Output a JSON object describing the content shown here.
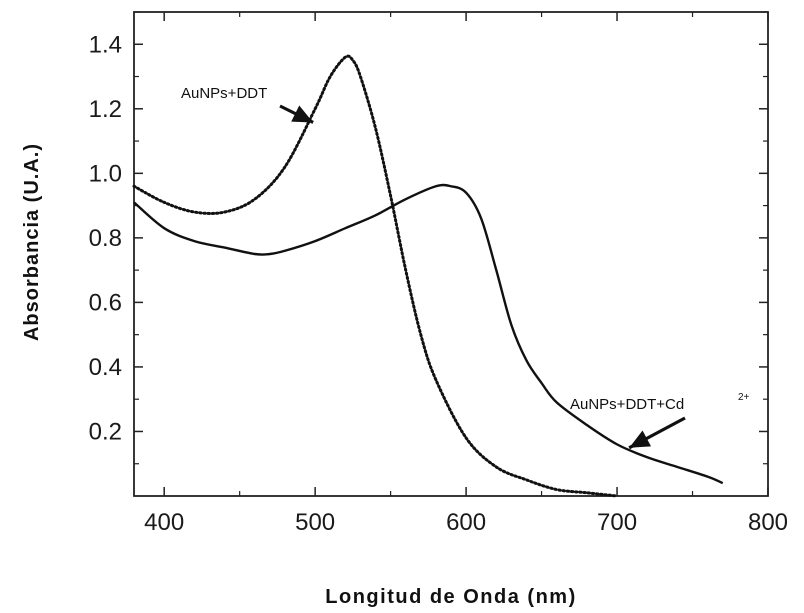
{
  "chart_data": {
    "type": "line",
    "title": "",
    "xlabel": "Longitud de Onda (nm)",
    "ylabel": "Absorbancia (U.A.)",
    "xlim": [
      380,
      800
    ],
    "ylim": [
      0,
      1.5
    ],
    "x_ticks": [
      "400",
      "500",
      "600",
      "700",
      "800"
    ],
    "y_ticks": [
      "0.2",
      "0.4",
      "0.6",
      "0.8",
      "1.0",
      "1.2",
      "1.4"
    ],
    "grid": false,
    "series": [
      {
        "name": "AuNPs+DDT",
        "style": "dotted",
        "x": [
          380,
          400,
          420,
          440,
          460,
          480,
          500,
          510,
          520,
          525,
          530,
          540,
          550,
          560,
          570,
          580,
          600,
          620,
          640,
          660,
          680,
          700
        ],
        "y": [
          0.96,
          0.91,
          0.88,
          0.88,
          0.92,
          1.02,
          1.2,
          1.3,
          1.36,
          1.35,
          1.3,
          1.14,
          0.93,
          0.7,
          0.5,
          0.36,
          0.18,
          0.09,
          0.05,
          0.02,
          0.01,
          0.0
        ]
      },
      {
        "name": "AuNPs+DDT+Cd",
        "name_superscript": "2+",
        "style": "solid",
        "x": [
          380,
          400,
          420,
          440,
          460,
          470,
          480,
          500,
          520,
          540,
          560,
          580,
          590,
          600,
          610,
          620,
          630,
          640,
          650,
          660,
          680,
          700,
          720,
          740,
          760,
          770
        ],
        "y": [
          0.91,
          0.83,
          0.79,
          0.77,
          0.75,
          0.75,
          0.76,
          0.79,
          0.83,
          0.87,
          0.92,
          0.96,
          0.96,
          0.94,
          0.86,
          0.7,
          0.53,
          0.42,
          0.35,
          0.29,
          0.22,
          0.16,
          0.12,
          0.09,
          0.06,
          0.04
        ]
      }
    ],
    "annotations": [
      {
        "text": "AuNPs+DDT",
        "arrow_to": [
          500,
          1.17
        ]
      },
      {
        "text": "AuNPs+DDT+Cd",
        "superscript": "2+",
        "arrow_to": [
          710,
          0.14
        ]
      }
    ]
  }
}
